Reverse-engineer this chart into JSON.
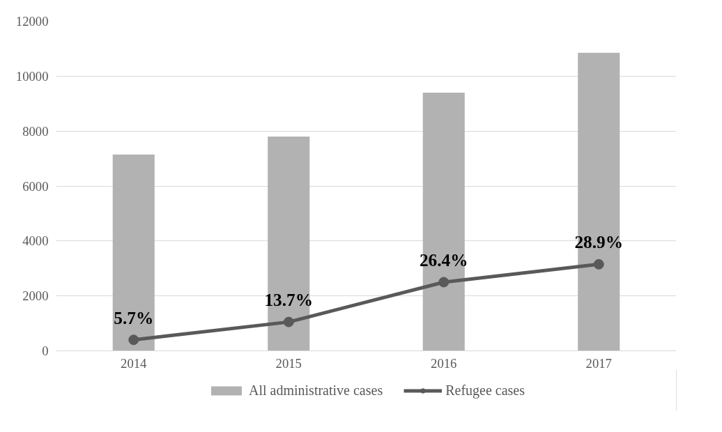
{
  "chart_data": {
    "type": "bar",
    "categories": [
      "2014",
      "2015",
      "2016",
      "2017"
    ],
    "series": [
      {
        "name": "All administrative cases",
        "color": "#b2b2b2",
        "values": [
          7150,
          7800,
          9400,
          10850
        ]
      },
      {
        "name": "Refugee cases",
        "type": "line",
        "color": "#595959",
        "values": [
          400,
          1050,
          2500,
          3150
        ]
      }
    ],
    "annotations": [
      {
        "text": "5.7%",
        "x": "2014",
        "y": 400
      },
      {
        "text": "13.7%",
        "x": "2015",
        "y": 1050
      },
      {
        "text": "26.4%",
        "x": "2016",
        "y": 2500
      },
      {
        "text": "28.9%",
        "x": "2017",
        "y": 3150
      }
    ],
    "ylim": [
      0,
      12000
    ],
    "yticks": [
      0,
      2000,
      4000,
      6000,
      8000,
      10000,
      12000
    ],
    "grid": "y",
    "legend": "bottom",
    "marker": "circle"
  }
}
